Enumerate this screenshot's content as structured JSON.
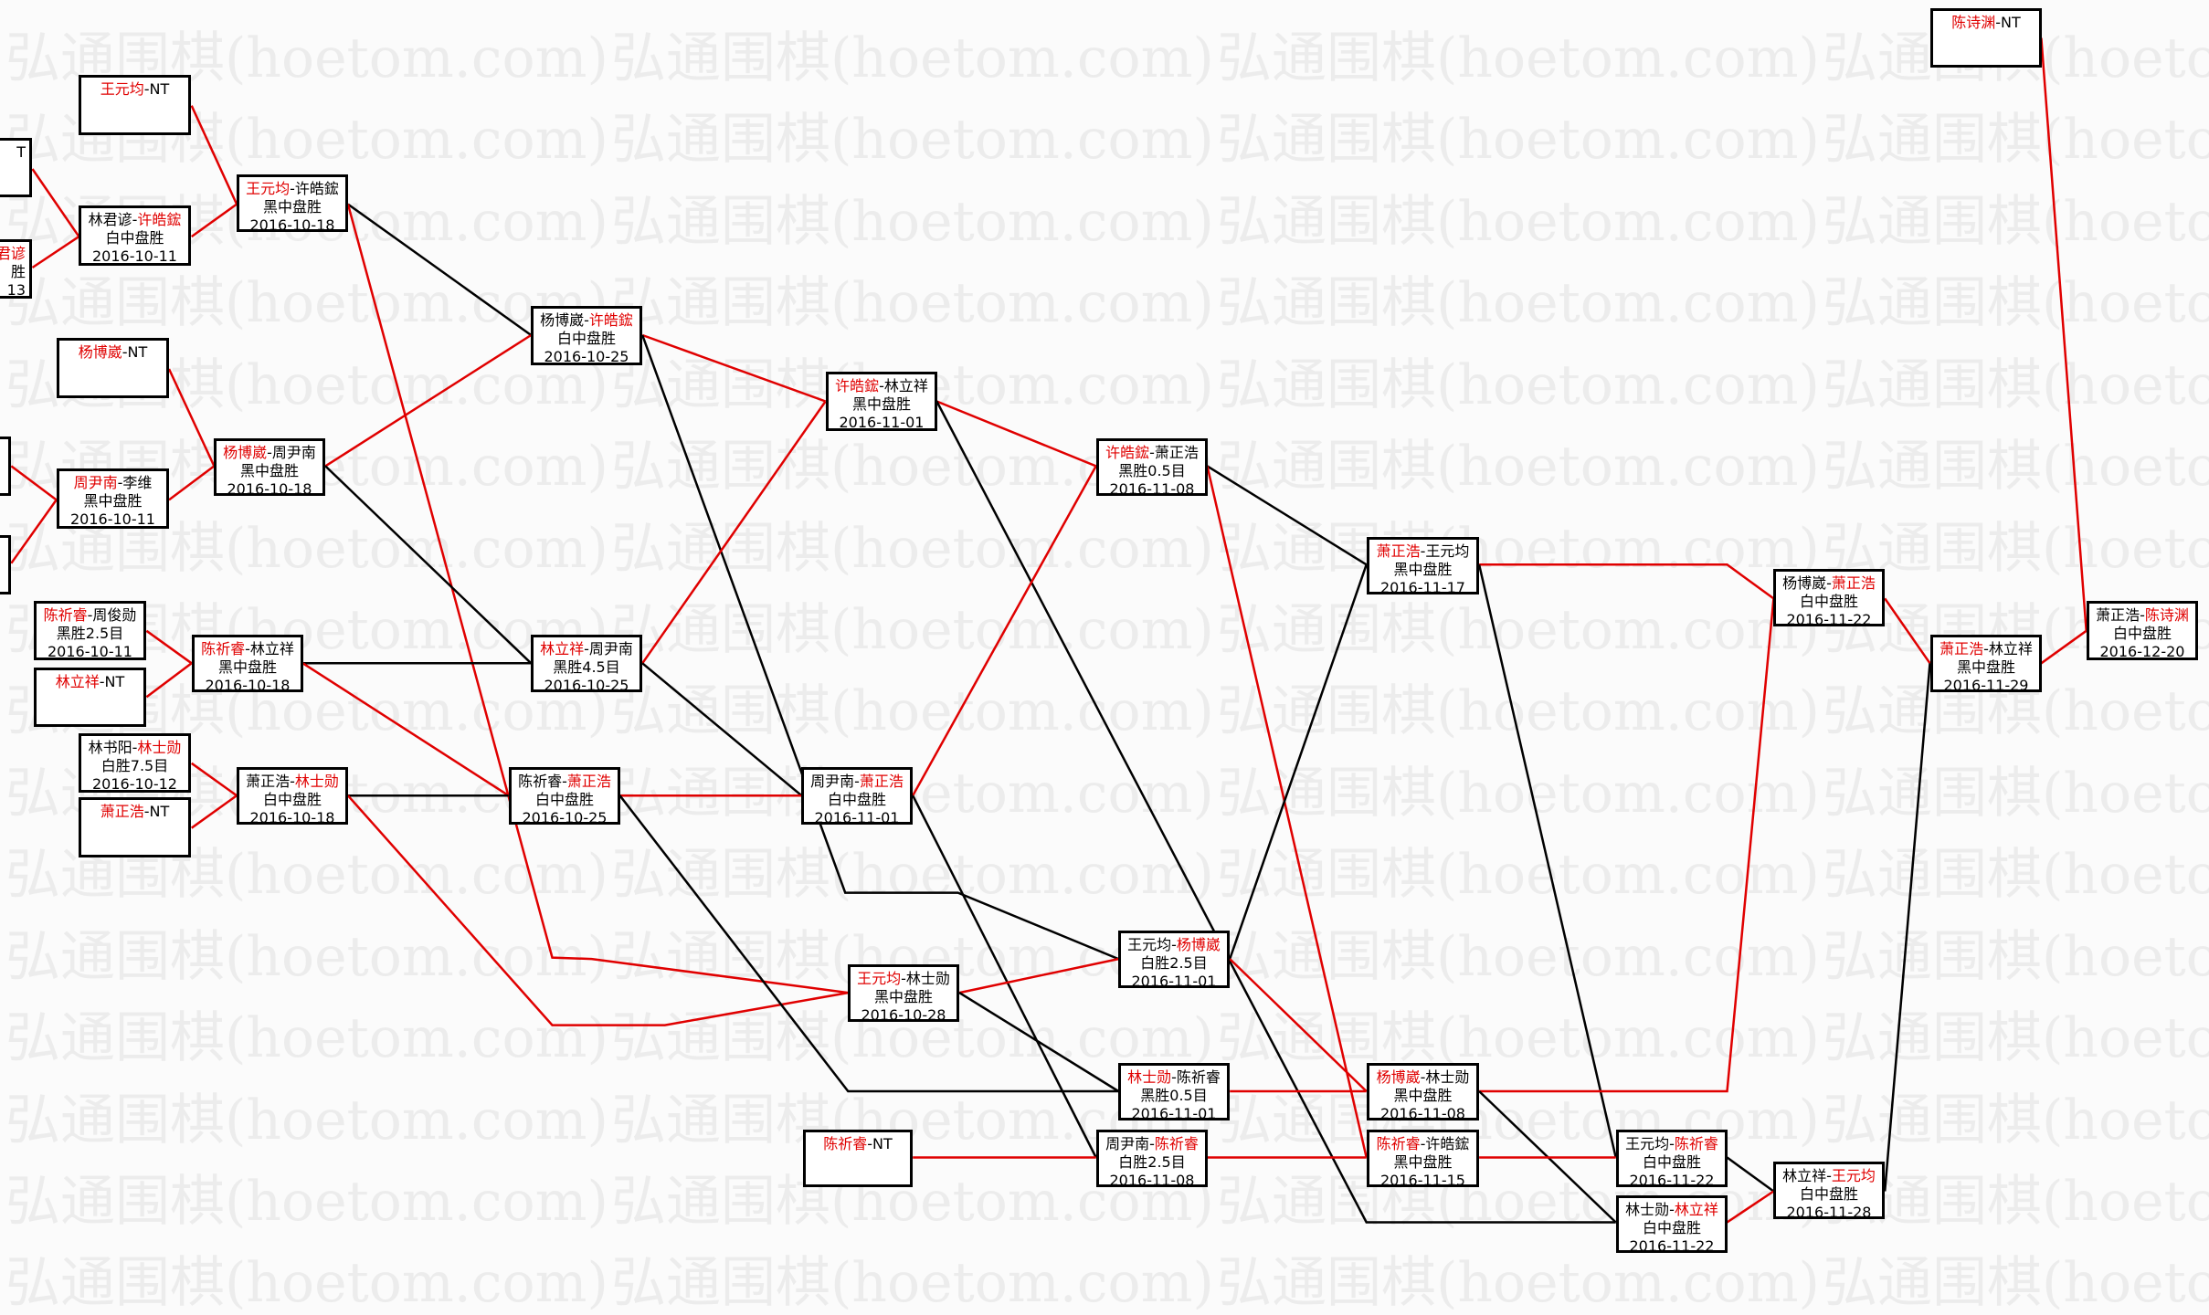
{
  "watermark": "弘通围棋(hoetom.com)",
  "colors": {
    "highlight_name": "#e00000",
    "winner_line": "#e00000",
    "loser_line": "#000000"
  },
  "matches": [
    {
      "p1": "",
      "p2": "T",
      "red": 0,
      "result": "",
      "date": ""
    },
    {
      "p1": "君谚",
      "p2": "",
      "red": 1,
      "result": "胜",
      "date": "13"
    },
    {
      "p1": "",
      "p2": "",
      "red": 0,
      "result": "",
      "date": ""
    },
    {
      "p1": "",
      "p2": "",
      "red": 0,
      "result": "",
      "date": ""
    },
    {
      "p1": "王元均",
      "p2": "NT",
      "red": 1,
      "result": "",
      "date": ""
    },
    {
      "p1": "林君谚",
      "p2": "许皓鋐",
      "red": 2,
      "result": "白中盘胜",
      "date": "2016-10-11"
    },
    {
      "p1": "王元均",
      "p2": "许皓鋐",
      "red": 1,
      "result": "黑中盘胜",
      "date": "2016-10-18"
    },
    {
      "p1": "杨博崴",
      "p2": "NT",
      "red": 1,
      "result": "",
      "date": ""
    },
    {
      "p1": "周尹南",
      "p2": "李维",
      "red": 1,
      "result": "黑中盘胜",
      "date": "2016-10-11"
    },
    {
      "p1": "杨博崴",
      "p2": "周尹南",
      "red": 1,
      "result": "黑中盘胜",
      "date": "2016-10-18"
    },
    {
      "p1": "陈祈睿",
      "p2": "周俊勋",
      "red": 1,
      "result": "黑胜2.5目",
      "date": "2016-10-11"
    },
    {
      "p1": "林立祥",
      "p2": "NT",
      "red": 1,
      "result": "",
      "date": ""
    },
    {
      "p1": "林书阳",
      "p2": "林士勋",
      "red": 2,
      "result": "白胜7.5目",
      "date": "2016-10-12"
    },
    {
      "p1": "萧正浩",
      "p2": "NT",
      "red": 1,
      "result": "",
      "date": ""
    },
    {
      "p1": "陈祈睿",
      "p2": "林立祥",
      "red": 1,
      "result": "黑中盘胜",
      "date": "2016-10-18"
    },
    {
      "p1": "萧正浩",
      "p2": "林士勋",
      "red": 2,
      "result": "白中盘胜",
      "date": "2016-10-18"
    },
    {
      "p1": "杨博崴",
      "p2": "许皓鋐",
      "red": 2,
      "result": "白中盘胜",
      "date": "2016-10-25"
    },
    {
      "p1": "林立祥",
      "p2": "周尹南",
      "red": 1,
      "result": "黑胜4.5目",
      "date": "2016-10-25"
    },
    {
      "p1": "陈祈睿",
      "p2": "萧正浩",
      "red": 2,
      "result": "白中盘胜",
      "date": "2016-10-25"
    },
    {
      "p1": "许皓鋐",
      "p2": "林立祥",
      "red": 1,
      "result": "黑中盘胜",
      "date": "2016-11-01"
    },
    {
      "p1": "周尹南",
      "p2": "萧正浩",
      "red": 2,
      "result": "白中盘胜",
      "date": "2016-11-01"
    },
    {
      "p1": "王元均",
      "p2": "林士勋",
      "red": 1,
      "result": "黑中盘胜",
      "date": "2016-10-28"
    },
    {
      "p1": "许皓鋐",
      "p2": "萧正浩",
      "red": 1,
      "result": "黑胜0.5目",
      "date": "2016-11-08"
    },
    {
      "p1": "王元均",
      "p2": "杨博崴",
      "red": 2,
      "result": "白胜2.5目",
      "date": "2016-11-01"
    },
    {
      "p1": "林士勋",
      "p2": "陈祈睿",
      "red": 1,
      "result": "黑胜0.5目",
      "date": "2016-11-01"
    },
    {
      "p1": "陈祈睿",
      "p2": "NT",
      "red": 1,
      "result": "",
      "date": ""
    },
    {
      "p1": "周尹南",
      "p2": "陈祈睿",
      "red": 2,
      "result": "白胜2.5目",
      "date": "2016-11-08"
    },
    {
      "p1": "萧正浩",
      "p2": "王元均",
      "red": 1,
      "result": "黑中盘胜",
      "date": "2016-11-17"
    },
    {
      "p1": "杨博崴",
      "p2": "林士勋",
      "red": 1,
      "result": "黑中盘胜",
      "date": "2016-11-08"
    },
    {
      "p1": "陈祈睿",
      "p2": "许皓鋐",
      "red": 1,
      "result": "黑中盘胜",
      "date": "2016-11-15"
    },
    {
      "p1": "杨博崴",
      "p2": "萧正浩",
      "red": 2,
      "result": "白中盘胜",
      "date": "2016-11-22"
    },
    {
      "p1": "王元均",
      "p2": "陈祈睿",
      "red": 2,
      "result": "白中盘胜",
      "date": "2016-11-22"
    },
    {
      "p1": "林士勋",
      "p2": "林立祥",
      "red": 2,
      "result": "白中盘胜",
      "date": "2016-11-22"
    },
    {
      "p1": "萧正浩",
      "p2": "林立祥",
      "red": 1,
      "result": "黑中盘胜",
      "date": "2016-11-29"
    },
    {
      "p1": "林立祥",
      "p2": "王元均",
      "red": 2,
      "result": "白中盘胜",
      "date": "2016-11-28"
    },
    {
      "p1": "陈诗渊",
      "p2": "NT",
      "red": 1,
      "result": "",
      "date": ""
    },
    {
      "p1": "萧正浩",
      "p2": "陈诗渊",
      "red": 2,
      "result": "白中盘胜",
      "date": "2016-12-20"
    }
  ]
}
